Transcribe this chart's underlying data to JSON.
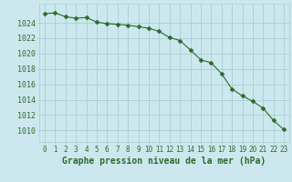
{
  "x": [
    0,
    1,
    2,
    3,
    4,
    5,
    6,
    7,
    8,
    9,
    10,
    11,
    12,
    13,
    14,
    15,
    16,
    17,
    18,
    19,
    20,
    21,
    22,
    23
  ],
  "y": [
    1025.2,
    1025.3,
    1024.8,
    1024.6,
    1024.7,
    1024.1,
    1023.9,
    1023.8,
    1023.7,
    1023.5,
    1023.3,
    1022.9,
    1022.1,
    1021.7,
    1020.5,
    1019.2,
    1018.8,
    1017.4,
    1015.4,
    1014.5,
    1013.8,
    1012.9,
    1011.3,
    1010.1
  ],
  "line_color": "#2d6a2d",
  "marker": "D",
  "marker_size": 2.5,
  "bg_color": "#cce8ee",
  "grid_color": "#aacdd6",
  "xlabel": "Graphe pression niveau de la mer (hPa)",
  "xlabel_fontsize": 7,
  "ylabel_ticks": [
    1010,
    1012,
    1014,
    1016,
    1018,
    1020,
    1022,
    1024
  ],
  "ylim": [
    1008.5,
    1026.5
  ],
  "xlim": [
    -0.5,
    23.5
  ],
  "xtick_labels": [
    "0",
    "1",
    "2",
    "3",
    "4",
    "5",
    "6",
    "7",
    "8",
    "9",
    "10",
    "11",
    "12",
    "13",
    "14",
    "15",
    "16",
    "17",
    "18",
    "19",
    "20",
    "21",
    "22",
    "23"
  ],
  "tick_color": "#2d6a2d",
  "ytick_fontsize": 6,
  "xtick_fontsize": 5.5
}
